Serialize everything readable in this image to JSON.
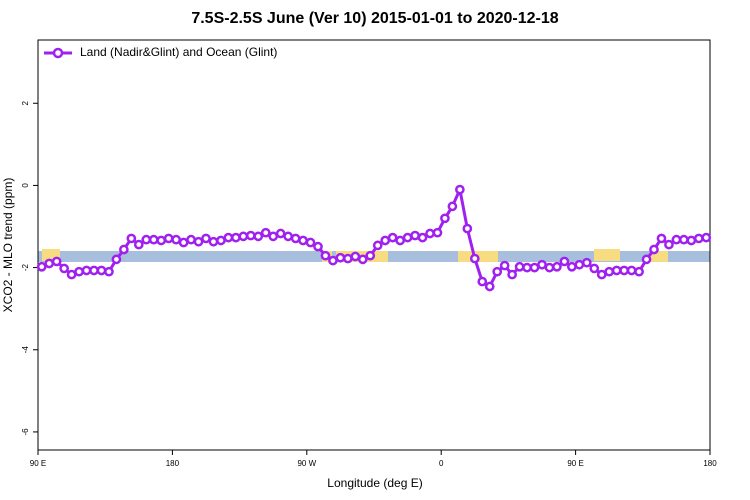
{
  "chart_data": {
    "type": "line",
    "title": "7.5S-2.5S June (Ver 10)   2015-01-01 to 2020-12-18",
    "x_label": "Longitude (deg E)",
    "y_label": "XCO2 - MLO trend (ppm)",
    "x": [
      92.5,
      97.5,
      102.5,
      107.5,
      112.5,
      117.5,
      122.5,
      127.5,
      132.5,
      137.5,
      142.5,
      147.5,
      152.5,
      157.5,
      162.5,
      167.5,
      172.5,
      177.5,
      182.5,
      187.5,
      192.5,
      197.5,
      202.5,
      207.5,
      212.5,
      217.5,
      222.5,
      227.5,
      232.5,
      237.5,
      242.5,
      247.5,
      252.5,
      257.5,
      262.5,
      267.5,
      272.5,
      277.5,
      282.5,
      287.5,
      292.5,
      297.5,
      302.5,
      307.5,
      312.5,
      317.5,
      322.5,
      327.5,
      332.5,
      337.5,
      342.5,
      347.5,
      352.5,
      357.5,
      362.5,
      367.5,
      372.5,
      377.5,
      382.5,
      387.5,
      392.5,
      397.5,
      402.5,
      407.5,
      412.5,
      417.5,
      422.5,
      427.5,
      432.5,
      437.5,
      442.5,
      447.5,
      452.5,
      457.5,
      462.5,
      467.5,
      472.5,
      477.5,
      482.5,
      487.5,
      492.5,
      497.5,
      502.5,
      507.5,
      512.5,
      517.5,
      522.5,
      527.5,
      532.5,
      537.5
    ],
    "series": [
      {
        "name": "Land (Nadir&Glint) and Ocean (Glint)",
        "color": "#a020f0",
        "values": [
          -1.98,
          -1.9,
          -1.85,
          -2.02,
          -2.17,
          -2.1,
          -2.07,
          -2.07,
          -2.07,
          -2.1,
          -1.8,
          -1.56,
          -1.29,
          -1.44,
          -1.32,
          -1.32,
          -1.34,
          -1.29,
          -1.32,
          -1.39,
          -1.32,
          -1.37,
          -1.29,
          -1.37,
          -1.34,
          -1.27,
          -1.27,
          -1.24,
          -1.22,
          -1.24,
          -1.15,
          -1.24,
          -1.17,
          -1.24,
          -1.29,
          -1.34,
          -1.39,
          -1.49,
          -1.71,
          -1.83,
          -1.76,
          -1.78,
          -1.73,
          -1.8,
          -1.71,
          -1.46,
          -1.34,
          -1.27,
          -1.34,
          -1.27,
          -1.22,
          -1.27,
          -1.17,
          -1.15,
          -0.8,
          -0.51,
          -0.1,
          -1.05,
          -1.78,
          -2.34,
          -2.46,
          -2.1,
          -1.95,
          -2.17,
          -1.98,
          -2.0,
          -2.0,
          -1.93,
          -2.0,
          -1.98,
          -1.85,
          -1.98,
          -1.93,
          -1.88,
          -2.02,
          -2.17,
          -2.1,
          -2.07,
          -2.07,
          -2.07,
          -2.1,
          -1.8,
          -1.56,
          -1.29,
          -1.44,
          -1.32,
          -1.32,
          -1.34,
          -1.29,
          -1.27
        ]
      }
    ],
    "xlim": [
      90,
      540
    ],
    "ylim": [
      -6.44,
      3.54
    ],
    "xticks": [
      {
        "value": 90,
        "label": "90 E"
      },
      180,
      {
        "value": 270,
        "label": "90 W"
      },
      {
        "value": 360,
        "label": "0"
      },
      {
        "value": 450,
        "label": "90 E"
      },
      {
        "value": 540,
        "label": "180"
      }
    ],
    "yticks": [
      2,
      0,
      -2,
      -4,
      -6
    ],
    "legend": "top-left"
  }
}
